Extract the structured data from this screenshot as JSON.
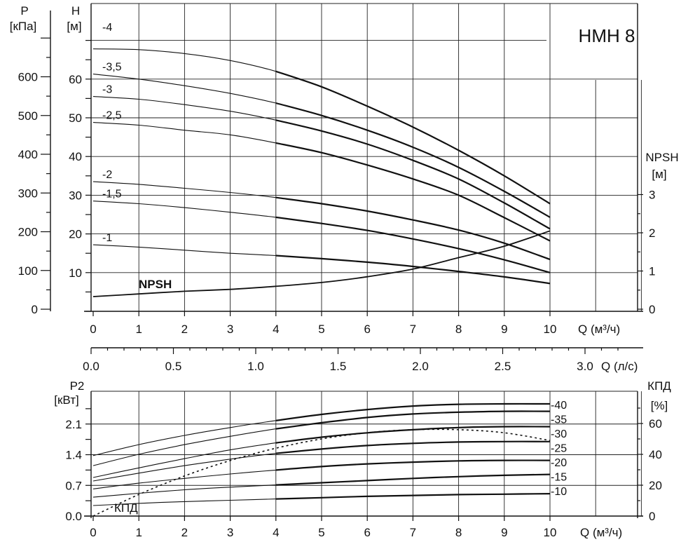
{
  "chart_data": [
    {
      "type": "line",
      "title": "НМН 8",
      "x_axis_label": "Q (м³/ч)",
      "x_ticks": [
        "0",
        "1",
        "2",
        "3",
        "4",
        "5",
        "6",
        "7",
        "8",
        "9",
        "10"
      ],
      "xlim": [
        0,
        12
      ],
      "y_axis_label": "H [м]",
      "y_label_line1": "H",
      "y_label_line2": "[м]",
      "y_ticks": [
        "10",
        "20",
        "30",
        "40",
        "50",
        "60"
      ],
      "ylim": [
        0,
        72
      ],
      "pressure_axis_label": "P [кПа]",
      "pressure_label_line1": "P",
      "pressure_label_line2": "[кПа]",
      "pressure_ticks": [
        "0",
        "100",
        "200",
        "300",
        "400",
        "500",
        "600"
      ],
      "npsh_axis_label": "NPSH [м]",
      "npsh_label_line1": "NPSH",
      "npsh_label_line2": "[м]",
      "npsh_ticks": [
        "0",
        "1",
        "2",
        "3"
      ],
      "grid": true,
      "series": [
        {
          "name": "-4",
          "x": [
            0,
            1,
            2,
            3,
            4,
            5,
            6,
            7,
            8,
            9,
            10
          ],
          "y": [
            67.8,
            67.6,
            66.6,
            64.8,
            62.0,
            58.0,
            53.0,
            47.6,
            41.6,
            35.0,
            27.8
          ]
        },
        {
          "name": "-3,5",
          "x": [
            0,
            1,
            2,
            3,
            4,
            5,
            6,
            7,
            8,
            9,
            10
          ],
          "y": [
            61.3,
            60.0,
            58.3,
            56.3,
            53.8,
            50.6,
            46.8,
            42.4,
            37.2,
            31.0,
            24.3
          ]
        },
        {
          "name": "-3",
          "x": [
            0,
            1,
            2,
            3,
            4,
            5,
            6,
            7,
            8,
            9,
            10
          ],
          "y": [
            55.5,
            54.8,
            53.4,
            51.7,
            49.4,
            46.6,
            43.2,
            39.0,
            34.2,
            28.0,
            21.3
          ]
        },
        {
          "name": "-2,5",
          "x": [
            0,
            1,
            2,
            3,
            4,
            5,
            6,
            7,
            8,
            9,
            10
          ],
          "y": [
            48.8,
            48.1,
            46.8,
            45.6,
            43.5,
            41.0,
            37.8,
            34.2,
            30.0,
            24.2,
            18.2
          ]
        },
        {
          "name": "-2",
          "x": [
            0,
            1,
            2,
            3,
            4,
            5,
            6,
            7,
            8,
            9,
            10
          ],
          "y": [
            33.5,
            32.8,
            31.8,
            30.7,
            29.4,
            27.8,
            25.9,
            23.6,
            21.0,
            17.6,
            13.4
          ]
        },
        {
          "name": "-1,5",
          "x": [
            0,
            1,
            2,
            3,
            4,
            5,
            6,
            7,
            8,
            9,
            10
          ],
          "y": [
            28.5,
            27.8,
            26.8,
            25.6,
            24.3,
            22.7,
            20.9,
            18.7,
            16.2,
            13.3,
            10.0
          ]
        },
        {
          "name": "-1",
          "x": [
            0,
            1,
            2,
            3,
            4,
            5,
            6,
            7,
            8,
            9,
            10
          ],
          "y": [
            17.2,
            16.6,
            15.8,
            15.0,
            14.4,
            13.6,
            12.7,
            11.6,
            10.3,
            8.9,
            7.2
          ]
        }
      ],
      "npsh_curve": {
        "name": "NPSH",
        "x": [
          0,
          1,
          2,
          3,
          4,
          5,
          6,
          7,
          8,
          9,
          10
        ],
        "y": [
          0.33,
          0.4,
          0.47,
          0.52,
          0.6,
          0.7,
          0.85,
          1.05,
          1.35,
          1.65,
          2.05
        ]
      }
    },
    {
      "type": "line",
      "x_axis_label": "Q (л/с)",
      "x_ticks": [
        "0.0",
        "0.5",
        "1.0",
        "1.5",
        "2.0",
        "2.5",
        "3.0"
      ]
    },
    {
      "type": "line",
      "x_axis_label": "Q (м³/ч)",
      "x_ticks": [
        "0",
        "1",
        "2",
        "3",
        "4",
        "5",
        "6",
        "7",
        "8",
        "9",
        "10"
      ],
      "xlim": [
        0,
        12
      ],
      "y_axis_label": "P2 [кВт]",
      "y_label_line1": "P2",
      "y_label_line2": "[кВт]",
      "y_ticks": [
        "0.0",
        "0.7",
        "1.4",
        "2.1"
      ],
      "ylim": [
        0,
        2.8
      ],
      "eff_axis_label": "КПД [%]",
      "eff_label_line1": "КПД",
      "eff_label_line2": "[%]",
      "eff_ticks": [
        "0",
        "20",
        "40",
        "60"
      ],
      "grid": true,
      "series": [
        {
          "name": "-40",
          "x": [
            0,
            1,
            2,
            3,
            4,
            5,
            6,
            7,
            8,
            9,
            10
          ],
          "y": [
            1.38,
            1.63,
            1.84,
            2.02,
            2.18,
            2.32,
            2.43,
            2.51,
            2.55,
            2.56,
            2.56
          ]
        },
        {
          "name": "-35",
          "x": [
            0,
            1,
            2,
            3,
            4,
            5,
            6,
            7,
            8,
            9,
            10
          ],
          "y": [
            1.15,
            1.41,
            1.63,
            1.82,
            1.99,
            2.13,
            2.25,
            2.33,
            2.37,
            2.39,
            2.39
          ]
        },
        {
          "name": "-30",
          "x": [
            0,
            1,
            2,
            3,
            4,
            5,
            6,
            7,
            8,
            9,
            10
          ],
          "y": [
            0.88,
            1.1,
            1.31,
            1.51,
            1.67,
            1.8,
            1.9,
            1.97,
            2.02,
            2.04,
            2.04
          ]
        },
        {
          "name": "-25",
          "x": [
            0,
            1,
            2,
            3,
            4,
            5,
            6,
            7,
            8,
            9,
            10
          ],
          "y": [
            0.8,
            0.98,
            1.15,
            1.3,
            1.43,
            1.53,
            1.61,
            1.66,
            1.69,
            1.7,
            1.7
          ]
        },
        {
          "name": "-20",
          "x": [
            0,
            1,
            2,
            3,
            4,
            5,
            6,
            7,
            8,
            9,
            10
          ],
          "y": [
            0.62,
            0.75,
            0.86,
            0.96,
            1.05,
            1.13,
            1.19,
            1.23,
            1.26,
            1.27,
            1.27
          ]
        },
        {
          "name": "-15",
          "x": [
            0,
            1,
            2,
            3,
            4,
            5,
            6,
            7,
            8,
            9,
            10
          ],
          "y": [
            0.43,
            0.52,
            0.6,
            0.66,
            0.71,
            0.76,
            0.81,
            0.86,
            0.9,
            0.93,
            0.95
          ]
        },
        {
          "name": "-10",
          "x": [
            0,
            1,
            2,
            3,
            4,
            5,
            6,
            7,
            8,
            9,
            10
          ],
          "y": [
            0.24,
            0.29,
            0.33,
            0.36,
            0.39,
            0.42,
            0.45,
            0.47,
            0.49,
            0.5,
            0.51
          ]
        }
      ],
      "efficiency_curve": {
        "name": "КПД",
        "x": [
          0,
          1,
          2,
          3,
          4,
          5,
          6,
          7,
          8,
          9,
          10
        ],
        "y": [
          0,
          14,
          26,
          36,
          44,
          50,
          54,
          56,
          56,
          54,
          49
        ]
      }
    }
  ]
}
